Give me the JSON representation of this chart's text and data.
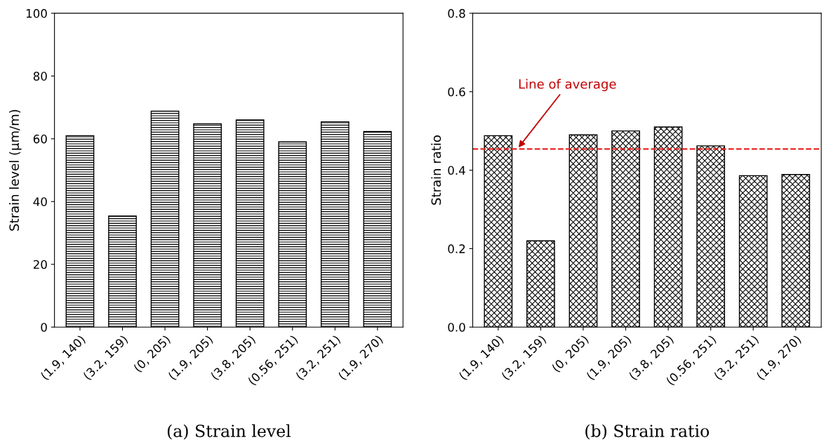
{
  "chart_data": [
    {
      "type": "bar",
      "categories": [
        "(1.9, 140)",
        "(3.2, 159)",
        "(0, 205)",
        "(1.9, 205)",
        "(3.8, 205)",
        "(0.56, 251)",
        "(3.2, 251)",
        "(1.9, 270)"
      ],
      "values": [
        61.0,
        35.4,
        68.8,
        64.8,
        66.0,
        59.0,
        65.4,
        62.3
      ],
      "color": "#000000",
      "ylabel": "Strain level (µm/m)",
      "ylim": [
        0,
        100
      ],
      "yticks": [
        0,
        20,
        40,
        60,
        80,
        100
      ],
      "grid": false,
      "annotations": [
        "(a) Strain level"
      ]
    },
    {
      "type": "bar",
      "categories": [
        "(1.9, 140)",
        "(3.2, 159)",
        "(0, 205)",
        "(1.9, 205)",
        "(3.8, 205)",
        "(0.56, 251)",
        "(3.2, 251)",
        "(1.9, 270)"
      ],
      "values": [
        0.488,
        0.22,
        0.49,
        0.5,
        0.51,
        0.462,
        0.386,
        0.389
      ],
      "color": "#000000",
      "ylabel": "Strain ratio",
      "ylim": [
        0,
        0.8
      ],
      "yticks": [
        {
          "value": 0,
          "label": "0.0"
        },
        0.2,
        0.4,
        0.6,
        0.8
      ],
      "grid": false,
      "ref_lines": [
        {
          "axis": "y",
          "value": 0.454,
          "label": "Line of average",
          "color": "#e8231f",
          "line_style": "dashed"
        }
      ],
      "annotations": [
        "(b) Strain ratio"
      ]
    }
  ]
}
